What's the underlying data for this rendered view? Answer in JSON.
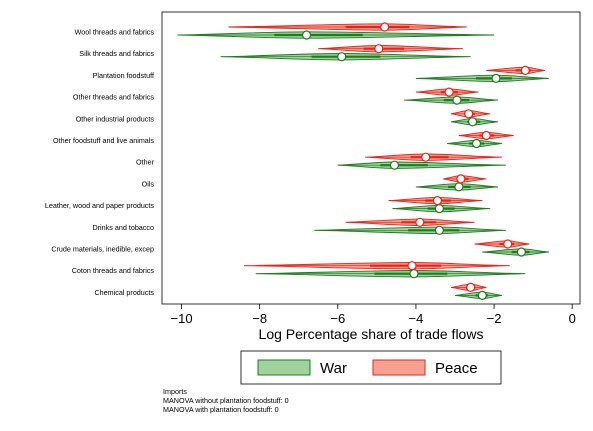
{
  "chart_data": {
    "type": "violin",
    "orientation": "horizontal",
    "xlabel": "Log Percentage share of trade flows",
    "ylabel": "",
    "xlim": [
      -10.5,
      0.2
    ],
    "xticks": [
      -10,
      -8,
      -6,
      -4,
      -2,
      0
    ],
    "grid": false,
    "legend_position": "bottom",
    "categories": [
      "Wool threads and fabrics",
      "Silk threads and fabrics",
      "Plantation foodstuff",
      "Other threads and fabrics",
      "Other industrial products",
      "Other foodstuff and live animals",
      "Other",
      "Oils",
      "Leather, wood and paper products",
      "Drinks and tobacco",
      "Crude materials, inedible, excep",
      "Coton threads and fabrics",
      "Chemical products"
    ],
    "series": [
      {
        "name": "War",
        "color": "#1e7b1e",
        "fill": "#9fd29f",
        "medians": [
          -6.8,
          -5.9,
          -1.95,
          -2.95,
          -2.55,
          -2.45,
          -4.55,
          -2.9,
          -3.4,
          -3.4,
          -1.3,
          -4.05,
          -2.3
        ],
        "ranges": [
          [
            -10.1,
            -2.0
          ],
          [
            -9.0,
            -2.6
          ],
          [
            -4.0,
            -0.6
          ],
          [
            -4.3,
            -1.9
          ],
          [
            -3.1,
            -1.9
          ],
          [
            -3.2,
            -1.8
          ],
          [
            -6.0,
            -1.7
          ],
          [
            -4.0,
            -1.9
          ],
          [
            -4.6,
            -2.1
          ],
          [
            -6.6,
            -1.7
          ],
          [
            -2.3,
            -0.6
          ],
          [
            -8.1,
            -1.2
          ],
          [
            -3.0,
            -1.8
          ]
        ]
      },
      {
        "name": "Peace",
        "color": "#e8231a",
        "fill": "#f6a08f",
        "medians": [
          -4.8,
          -4.95,
          -1.2,
          -3.15,
          -2.65,
          -2.2,
          -3.75,
          -2.85,
          -3.45,
          -3.9,
          -1.65,
          -4.1,
          -2.6
        ],
        "ranges": [
          [
            -8.8,
            -2.7
          ],
          [
            -6.5,
            -2.8
          ],
          [
            -2.2,
            -0.7
          ],
          [
            -4.0,
            -2.4
          ],
          [
            -3.1,
            -2.1
          ],
          [
            -2.9,
            -1.5
          ],
          [
            -5.3,
            -1.8
          ],
          [
            -3.3,
            -2.2
          ],
          [
            -4.7,
            -2.3
          ],
          [
            -5.8,
            -2.5
          ],
          [
            -2.5,
            -1.1
          ],
          [
            -8.4,
            -1.6
          ],
          [
            -3.1,
            -2.2
          ]
        ]
      }
    ],
    "notes": [
      "Imports",
      "MANOVA without plantation foodstuff: 0",
      "MANOVA with plantation foodstuff: 0"
    ]
  }
}
